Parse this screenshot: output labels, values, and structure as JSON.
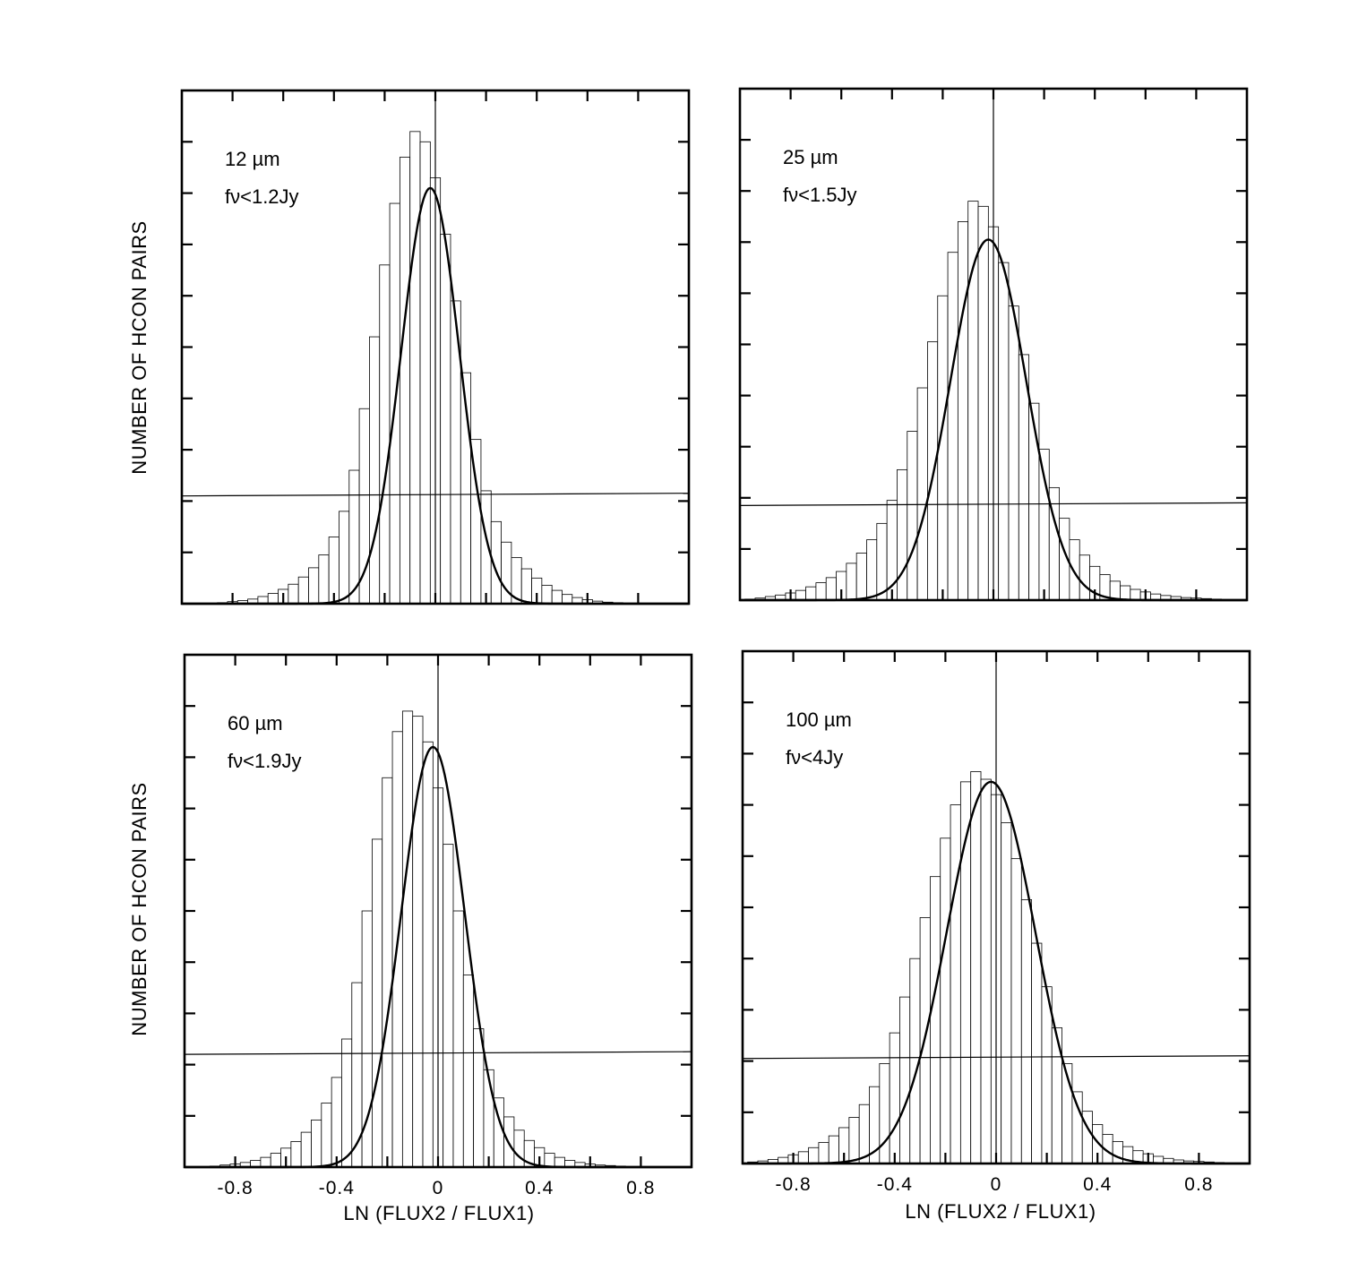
{
  "figure": {
    "ylabel": "NUMBER OF HCON PAIRS",
    "xlabel": "LN (FLUX2 / FLUX1)"
  },
  "chart_data": [
    {
      "type": "bar",
      "band": "12 µm",
      "flux_limit": "fν<1.2Jy",
      "xlabel": "",
      "ylabel": "NUMBER OF HCON PAIRS",
      "xlim": [
        -1.0,
        1.0
      ],
      "ylim": [
        0,
        10
      ],
      "x_ticks": [
        -0.8,
        -0.4,
        0,
        0.4,
        0.8
      ],
      "x_ticklabels": [],
      "x": [
        -0.96,
        -0.92,
        -0.88,
        -0.84,
        -0.8,
        -0.76,
        -0.72,
        -0.68,
        -0.64,
        -0.6,
        -0.56,
        -0.52,
        -0.48,
        -0.44,
        -0.4,
        -0.36,
        -0.32,
        -0.28,
        -0.24,
        -0.2,
        -0.16,
        -0.12,
        -0.08,
        -0.04,
        0.0,
        0.04,
        0.08,
        0.12,
        0.16,
        0.2,
        0.24,
        0.28,
        0.32,
        0.36,
        0.4,
        0.44,
        0.48,
        0.52,
        0.56,
        0.6,
        0.64,
        0.68,
        0.72,
        0.76,
        0.8,
        0.84,
        0.88,
        0.92,
        0.96
      ],
      "values": [
        0.0,
        0.0,
        0.01,
        0.02,
        0.04,
        0.06,
        0.09,
        0.14,
        0.2,
        0.28,
        0.38,
        0.52,
        0.7,
        0.95,
        1.3,
        1.8,
        2.6,
        3.8,
        5.2,
        6.6,
        7.8,
        8.7,
        9.2,
        9.0,
        8.3,
        7.2,
        5.9,
        4.5,
        3.2,
        2.2,
        1.6,
        1.2,
        0.9,
        0.68,
        0.5,
        0.36,
        0.26,
        0.18,
        0.12,
        0.08,
        0.05,
        0.03,
        0.02,
        0.01,
        0.01,
        0.0,
        0.0,
        0.0,
        0.0
      ],
      "gaussian_fit": {
        "mean": -0.02,
        "sigma": 0.115,
        "peak": 8.1
      },
      "horizontal_line": 2.1,
      "vertical_line_at": 0
    },
    {
      "type": "bar",
      "band": "25 µm",
      "flux_limit": "fν<1.5Jy",
      "xlabel": "",
      "ylabel": "",
      "xlim": [
        -1.0,
        1.0
      ],
      "ylim": [
        0,
        10
      ],
      "x_ticks": [
        -0.8,
        -0.4,
        0,
        0.4,
        0.8
      ],
      "x_ticklabels": [],
      "x": [
        -0.96,
        -0.92,
        -0.88,
        -0.84,
        -0.8,
        -0.76,
        -0.72,
        -0.68,
        -0.64,
        -0.6,
        -0.56,
        -0.52,
        -0.48,
        -0.44,
        -0.4,
        -0.36,
        -0.32,
        -0.28,
        -0.24,
        -0.2,
        -0.16,
        -0.12,
        -0.08,
        -0.04,
        0.0,
        0.04,
        0.08,
        0.12,
        0.16,
        0.2,
        0.24,
        0.28,
        0.32,
        0.36,
        0.4,
        0.44,
        0.48,
        0.52,
        0.56,
        0.6,
        0.64,
        0.68,
        0.72,
        0.76,
        0.8,
        0.84,
        0.88,
        0.92,
        0.96
      ],
      "values": [
        0.02,
        0.04,
        0.07,
        0.1,
        0.14,
        0.19,
        0.26,
        0.34,
        0.44,
        0.56,
        0.72,
        0.92,
        1.18,
        1.5,
        1.95,
        2.55,
        3.3,
        4.15,
        5.05,
        5.95,
        6.8,
        7.4,
        7.8,
        7.7,
        7.3,
        6.6,
        5.75,
        4.8,
        3.85,
        2.95,
        2.2,
        1.6,
        1.18,
        0.88,
        0.66,
        0.5,
        0.37,
        0.28,
        0.21,
        0.16,
        0.12,
        0.09,
        0.07,
        0.05,
        0.04,
        0.03,
        0.02,
        0.01,
        0.01
      ],
      "gaussian_fit": {
        "mean": -0.02,
        "sigma": 0.15,
        "peak": 7.05
      },
      "horizontal_line": 1.85,
      "vertical_line_at": 0
    },
    {
      "type": "bar",
      "band": "60 µm",
      "flux_limit": "fν<1.9Jy",
      "xlabel": "LN (FLUX2 / FLUX1)",
      "ylabel": "NUMBER OF HCON PAIRS",
      "xlim": [
        -1.0,
        1.0
      ],
      "ylim": [
        0,
        10
      ],
      "x_ticks": [
        -0.8,
        -0.4,
        0,
        0.4,
        0.8
      ],
      "x_ticklabels": [
        "-0.8",
        "-0.4",
        "0",
        "0.4",
        "0.8"
      ],
      "x": [
        -0.96,
        -0.92,
        -0.88,
        -0.84,
        -0.8,
        -0.76,
        -0.72,
        -0.68,
        -0.64,
        -0.6,
        -0.56,
        -0.52,
        -0.48,
        -0.44,
        -0.4,
        -0.36,
        -0.32,
        -0.28,
        -0.24,
        -0.2,
        -0.16,
        -0.12,
        -0.08,
        -0.04,
        0.0,
        0.04,
        0.08,
        0.12,
        0.16,
        0.2,
        0.24,
        0.28,
        0.32,
        0.36,
        0.4,
        0.44,
        0.48,
        0.52,
        0.56,
        0.6,
        0.64,
        0.68,
        0.72,
        0.76,
        0.8,
        0.84,
        0.88,
        0.92,
        0.96
      ],
      "values": [
        0.0,
        0.01,
        0.02,
        0.04,
        0.06,
        0.09,
        0.13,
        0.19,
        0.27,
        0.37,
        0.5,
        0.68,
        0.92,
        1.25,
        1.75,
        2.5,
        3.6,
        5.0,
        6.4,
        7.6,
        8.5,
        8.9,
        8.8,
        8.3,
        7.4,
        6.3,
        5.0,
        3.75,
        2.7,
        1.9,
        1.35,
        0.98,
        0.72,
        0.52,
        0.38,
        0.27,
        0.19,
        0.13,
        0.09,
        0.06,
        0.04,
        0.03,
        0.02,
        0.01,
        0.01,
        0.0,
        0.0,
        0.0,
        0.0
      ],
      "gaussian_fit": {
        "mean": -0.02,
        "sigma": 0.125,
        "peak": 8.2
      },
      "horizontal_line": 2.2,
      "vertical_line_at": 0
    },
    {
      "type": "bar",
      "band": "100 µm",
      "flux_limit": "fν<4Jy",
      "xlabel": "LN (FLUX2 / FLUX1)",
      "ylabel": "",
      "xlim": [
        -1.0,
        1.0
      ],
      "ylim": [
        0,
        10
      ],
      "x_ticks": [
        -0.8,
        -0.4,
        0,
        0.4,
        0.8
      ],
      "x_ticklabels": [
        "-0.8",
        "-0.4",
        "0",
        "0.4",
        "0.8"
      ],
      "x": [
        -0.96,
        -0.92,
        -0.88,
        -0.84,
        -0.8,
        -0.76,
        -0.72,
        -0.68,
        -0.64,
        -0.6,
        -0.56,
        -0.52,
        -0.48,
        -0.44,
        -0.4,
        -0.36,
        -0.32,
        -0.28,
        -0.24,
        -0.2,
        -0.16,
        -0.12,
        -0.08,
        -0.04,
        0.0,
        0.04,
        0.08,
        0.12,
        0.16,
        0.2,
        0.24,
        0.28,
        0.32,
        0.36,
        0.4,
        0.44,
        0.48,
        0.52,
        0.56,
        0.6,
        0.64,
        0.68,
        0.72,
        0.76,
        0.8,
        0.84,
        0.88,
        0.92,
        0.96
      ],
      "values": [
        0.03,
        0.05,
        0.08,
        0.12,
        0.17,
        0.23,
        0.31,
        0.41,
        0.54,
        0.7,
        0.9,
        1.15,
        1.5,
        1.95,
        2.55,
        3.25,
        4.0,
        4.8,
        5.6,
        6.35,
        7.0,
        7.45,
        7.65,
        7.5,
        7.2,
        6.65,
        5.95,
        5.15,
        4.3,
        3.45,
        2.65,
        1.95,
        1.4,
        1.02,
        0.76,
        0.57,
        0.43,
        0.33,
        0.25,
        0.19,
        0.14,
        0.1,
        0.07,
        0.05,
        0.04,
        0.03,
        0.02,
        0.01,
        0.01
      ],
      "gaussian_fit": {
        "mean": -0.02,
        "sigma": 0.175,
        "peak": 7.45
      },
      "horizontal_line": 2.05,
      "vertical_line_at": 0
    }
  ]
}
